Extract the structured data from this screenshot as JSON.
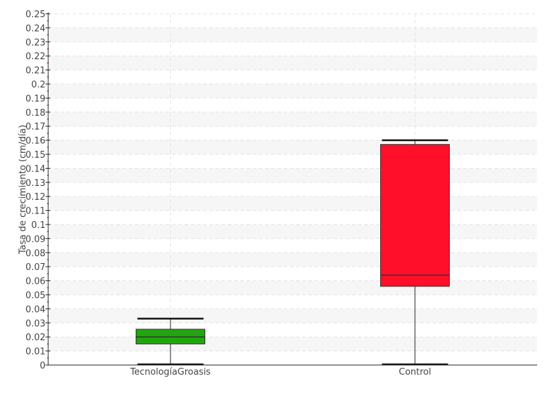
{
  "chart_data": {
    "type": "boxplot",
    "title": "",
    "xlabel": "",
    "ylabel": "Tasa de crecimiento (cm/día)",
    "ylim": [
      0,
      0.25
    ],
    "ytick_step": 0.01,
    "grid": "horizontal dashed with alternating bands",
    "categories": [
      "TecnologíaGroasis",
      "Control"
    ],
    "boxes": [
      {
        "category": "TecnologíaGroasis",
        "min": 0.0,
        "q1": 0.015,
        "median": 0.02,
        "q3": 0.0255,
        "max": 0.033,
        "color": "#22a511"
      },
      {
        "category": "Control",
        "min": 0.0,
        "q1": 0.056,
        "median": 0.064,
        "q3": 0.157,
        "max": 0.16,
        "color": "#ff0f2a"
      }
    ]
  }
}
